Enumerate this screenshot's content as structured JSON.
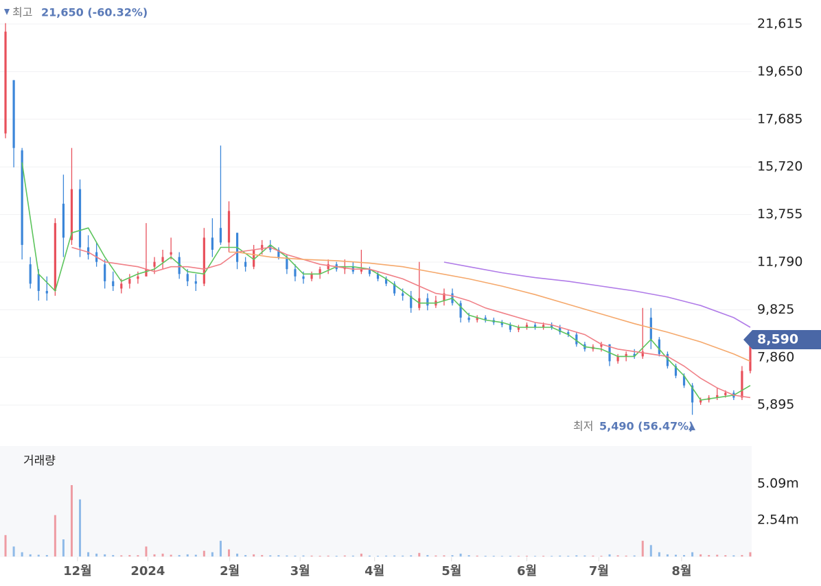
{
  "chart_data": {
    "type": "candlestick",
    "xlim": [
      -0.5,
      90.5
    ],
    "xticks": [
      {
        "value": 8.7,
        "label": "12월"
      },
      {
        "value": 17.2,
        "label": "2024"
      },
      {
        "value": 27.1,
        "label": "2월"
      },
      {
        "value": 35.6,
        "label": "3월"
      },
      {
        "value": 44.6,
        "label": "4월"
      },
      {
        "value": 53.9,
        "label": "5월"
      },
      {
        "value": 63.0,
        "label": "6월"
      },
      {
        "value": 71.7,
        "label": "7월"
      },
      {
        "value": 81.7,
        "label": "8월"
      }
    ],
    "ylim": [
      4485,
      22606
    ],
    "yticks": [
      {
        "value": 21615,
        "label": "21,615"
      },
      {
        "value": 19650,
        "label": "19,650"
      },
      {
        "value": 17685,
        "label": "17,685"
      },
      {
        "value": 15720,
        "label": "15,720"
      },
      {
        "value": 13755,
        "label": "13,755"
      },
      {
        "value": 11790,
        "label": "11,790"
      },
      {
        "value": 9825,
        "label": "9,825"
      },
      {
        "value": 7860,
        "label": "7,860"
      },
      {
        "value": 5895,
        "label": "5,895"
      }
    ],
    "grid": true,
    "up_color": "#e8505b",
    "down_color": "#3b86d9",
    "open": [
      17100,
      19300,
      16400,
      11700,
      11300,
      10600,
      10600,
      14200,
      12700,
      14800,
      12400,
      12200,
      11700,
      11000,
      10700,
      10900,
      11100,
      11200,
      11600,
      11800,
      12100,
      12000,
      11300,
      11000,
      10900,
      12800,
      13200,
      12600,
      13000,
      11800,
      11600,
      12300,
      12500,
      12300,
      12000,
      11500,
      11200,
      11100,
      11300,
      11500,
      11700,
      11500,
      11600,
      11400,
      11500,
      11300,
      11100,
      10900,
      10500,
      10400,
      9900,
      10300,
      10000,
      10200,
      10500,
      10100,
      9500,
      9400,
      9500,
      9400,
      9300,
      9200,
      9000,
      9100,
      9200,
      9100,
      9200,
      9100,
      8900,
      8800,
      8400,
      8200,
      8300,
      8400,
      7700,
      7900,
      8000,
      7900,
      9500,
      8600,
      8000,
      7500,
      7100,
      6700,
      6000,
      6100,
      6200,
      6300,
      6400,
      6200,
      7300
    ],
    "high": [
      21650,
      19300,
      16500,
      12000,
      11500,
      11200,
      13600,
      15400,
      16500,
      15200,
      12900,
      12600,
      11900,
      11400,
      11100,
      11300,
      11400,
      13400,
      12000,
      12300,
      12800,
      12200,
      11500,
      11300,
      13200,
      13600,
      16600,
      14300,
      13000,
      12000,
      12500,
      12700,
      12700,
      12400,
      12100,
      11700,
      11400,
      11400,
      11600,
      11900,
      11800,
      11900,
      11800,
      12300,
      11600,
      11400,
      11200,
      11000,
      10700,
      10600,
      11800,
      10500,
      10400,
      10700,
      10700,
      10200,
      9700,
      9600,
      9600,
      9500,
      9400,
      9300,
      9200,
      9300,
      9300,
      9300,
      9300,
      9200,
      9000,
      8900,
      8500,
      8400,
      8500,
      8400,
      8000,
      8100,
      8200,
      9900,
      9900,
      8700,
      8100,
      7600,
      7200,
      6800,
      6200,
      6300,
      6600,
      6500,
      6500,
      7500,
      8800
    ],
    "low": [
      16900,
      15700,
      11900,
      10700,
      10200,
      10200,
      10400,
      12000,
      12500,
      12000,
      11900,
      11600,
      10700,
      10600,
      10500,
      10700,
      10900,
      11200,
      11300,
      11500,
      11900,
      11100,
      10800,
      10600,
      10800,
      12000,
      12500,
      12200,
      11500,
      11400,
      11500,
      12100,
      12200,
      11900,
      11300,
      11000,
      10900,
      11000,
      11100,
      11300,
      11400,
      11300,
      11300,
      11300,
      11200,
      11000,
      10800,
      10400,
      10200,
      9700,
      9800,
      9800,
      9900,
      10000,
      10000,
      9300,
      9300,
      9300,
      9300,
      9200,
      9100,
      8900,
      8900,
      9000,
      9000,
      9000,
      9000,
      8800,
      8700,
      8300,
      8100,
      8100,
      8100,
      7500,
      7600,
      7700,
      7800,
      7800,
      8200,
      7900,
      7400,
      7000,
      6600,
      5490,
      5900,
      6000,
      6100,
      6200,
      6100,
      6100,
      7200
    ],
    "close": [
      21300,
      16500,
      12500,
      10900,
      10600,
      10500,
      13400,
      12800,
      14800,
      12400,
      12100,
      11800,
      11000,
      10800,
      10900,
      11100,
      11200,
      11500,
      11800,
      12000,
      12200,
      11300,
      11000,
      10900,
      12800,
      12300,
      12600,
      13900,
      11800,
      11600,
      12300,
      12500,
      12300,
      12000,
      11500,
      11200,
      11100,
      11300,
      11500,
      11700,
      11500,
      11600,
      11400,
      11500,
      11300,
      11100,
      10900,
      10500,
      10400,
      9900,
      10300,
      10000,
      10200,
      10500,
      10100,
      9500,
      9400,
      9500,
      9400,
      9300,
      9200,
      9000,
      9100,
      9200,
      9100,
      9200,
      9100,
      8900,
      8800,
      8400,
      8200,
      8300,
      8400,
      7700,
      7900,
      8000,
      7900,
      8100,
      8600,
      8000,
      7500,
      7100,
      6700,
      6000,
      6100,
      6200,
      6300,
      6400,
      6200,
      7300,
      8590
    ],
    "moving_averages": [
      {
        "color": "#5cc45c",
        "x": [
          2,
          4,
          6,
          8,
          10,
          12,
          14,
          16,
          18,
          20,
          22,
          24,
          26,
          28,
          30,
          32,
          34,
          36,
          38,
          40,
          42,
          44,
          46,
          48,
          50,
          52,
          54,
          56,
          58,
          60,
          62,
          64,
          66,
          68,
          70,
          72,
          74,
          76,
          78,
          80,
          82,
          84,
          86,
          88,
          90
        ],
        "values": [
          15900,
          11300,
          10600,
          13000,
          13200,
          12000,
          11000,
          11300,
          11500,
          12000,
          11400,
          11300,
          12400,
          12400,
          11900,
          12500,
          12000,
          11300,
          11300,
          11600,
          11600,
          11500,
          11100,
          10600,
          10100,
          10100,
          10300,
          9600,
          9400,
          9300,
          9100,
          9100,
          9100,
          8800,
          8300,
          8200,
          7900,
          7900,
          8600,
          7800,
          7100,
          6100,
          6200,
          6300,
          6700
        ]
      },
      {
        "color": "#f07f86",
        "x": [
          8,
          10,
          12,
          14,
          16,
          18,
          20,
          22,
          24,
          26,
          28,
          30,
          32,
          34,
          36,
          38,
          40,
          42,
          44,
          46,
          48,
          50,
          52,
          54,
          56,
          58,
          60,
          62,
          64,
          66,
          68,
          70,
          72,
          74,
          76,
          78,
          80,
          82,
          84,
          86,
          88,
          90
        ],
        "values": [
          12400,
          12200,
          11800,
          11700,
          11600,
          11400,
          11600,
          11600,
          11500,
          11700,
          12200,
          12300,
          12400,
          12100,
          11900,
          11700,
          11600,
          11500,
          11500,
          11300,
          11100,
          10800,
          10500,
          10400,
          10200,
          9900,
          9700,
          9500,
          9300,
          9200,
          9000,
          8800,
          8400,
          8200,
          8100,
          8000,
          7900,
          7500,
          7000,
          6600,
          6300,
          6200
        ]
      },
      {
        "color": "#f5a86b",
        "x": [
          27,
          28,
          32,
          36,
          40,
          44,
          48,
          52,
          56,
          60,
          64,
          68,
          72,
          76,
          80,
          84,
          88,
          90
        ],
        "values": [
          12200,
          12200,
          12000,
          11900,
          11850,
          11750,
          11600,
          11350,
          11100,
          10800,
          10450,
          10050,
          9650,
          9250,
          8900,
          8500,
          8000,
          7700
        ]
      },
      {
        "color": "#b07be8",
        "x": [
          53,
          56,
          60,
          64,
          68,
          72,
          76,
          80,
          84,
          88,
          90
        ],
        "values": [
          11790,
          11600,
          11350,
          11150,
          11000,
          10800,
          10600,
          10350,
          10000,
          9500,
          9100
        ]
      }
    ],
    "last_price": {
      "value": 8590,
      "label": "8,590"
    },
    "high_annotation": {
      "label": "최고",
      "text": "21,650 (-60.32%)"
    },
    "low_annotation": {
      "label": "최저",
      "text": "5,490 (56.47%)"
    },
    "volume": {
      "title": "거래량",
      "ylim": [
        0,
        7740000
      ],
      "yticks": [
        {
          "value": 5090000,
          "label": "5.09m"
        },
        {
          "value": 2540000,
          "label": "2.54m"
        }
      ],
      "values": [
        1500000,
        700000,
        300000,
        150000,
        120000,
        100000,
        2900000,
        1200000,
        5000000,
        4000000,
        300000,
        200000,
        150000,
        100000,
        80000,
        100000,
        90000,
        700000,
        150000,
        200000,
        120000,
        100000,
        150000,
        120000,
        400000,
        300000,
        1100000,
        500000,
        200000,
        100000,
        150000,
        100000,
        80000,
        90000,
        70000,
        60000,
        70000,
        60000,
        50000,
        60000,
        50000,
        70000,
        60000,
        200000,
        60000,
        50000,
        60000,
        70000,
        60000,
        80000,
        250000,
        100000,
        70000,
        80000,
        90000,
        200000,
        90000,
        60000,
        50000,
        50000,
        40000,
        50000,
        40000,
        50000,
        40000,
        50000,
        40000,
        60000,
        50000,
        80000,
        70000,
        60000,
        50000,
        150000,
        80000,
        60000,
        70000,
        1100000,
        800000,
        300000,
        150000,
        120000,
        100000,
        300000,
        150000,
        100000,
        120000,
        90000,
        80000,
        100000,
        300000
      ]
    }
  }
}
